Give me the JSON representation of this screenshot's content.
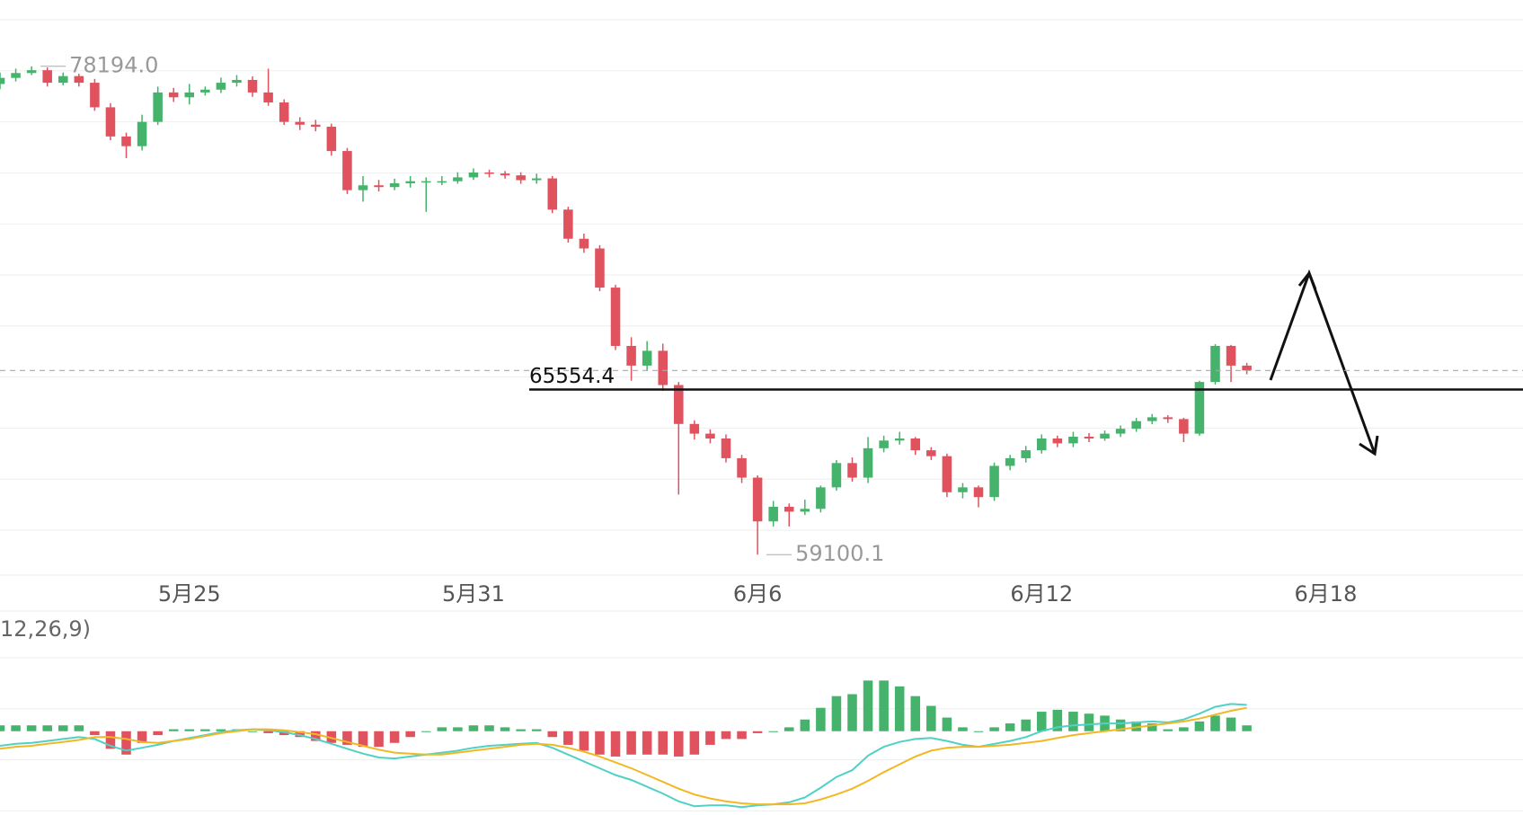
{
  "chart_data": {
    "type": "candlestick",
    "x": [
      0,
      1,
      2,
      3,
      4,
      5,
      6,
      7,
      8,
      9,
      10,
      11,
      12,
      13,
      14,
      15,
      16,
      17,
      18,
      19,
      20,
      21,
      22,
      23,
      24,
      25,
      26,
      27,
      28,
      29,
      30,
      31,
      32,
      33,
      34,
      35,
      36,
      37,
      38,
      39,
      40,
      41,
      42,
      43,
      44,
      45,
      46,
      47,
      48,
      49,
      50,
      51,
      52,
      53,
      54,
      55,
      56,
      57,
      58,
      59,
      60,
      61,
      62,
      63,
      64,
      65,
      66,
      67,
      68,
      69,
      70,
      71,
      72,
      73,
      74,
      75,
      76,
      77,
      78,
      79
    ],
    "open": [
      77500,
      77740,
      77930,
      78040,
      77550,
      77810,
      77550,
      76590,
      75450,
      75070,
      76020,
      77170,
      76980,
      77170,
      77280,
      77550,
      77660,
      77170,
      76780,
      76020,
      75910,
      75830,
      74880,
      73350,
      73540,
      73470,
      73620,
      73700,
      73700,
      73700,
      73850,
      74040,
      74000,
      73930,
      73740,
      73810,
      72590,
      71450,
      71070,
      69540,
      67260,
      66490,
      67070,
      65730,
      64210,
      63830,
      63640,
      62870,
      62110,
      60400,
      60970,
      60780,
      60890,
      61730,
      62680,
      62110,
      63260,
      63560,
      63640,
      63180,
      62950,
      61540,
      61730,
      61350,
      62570,
      62870,
      63180,
      63640,
      63450,
      63710,
      63640,
      63830,
      64020,
      64320,
      64470,
      64400,
      63830,
      65850,
      67260,
      66490
    ],
    "high": [
      77950,
      78100,
      78194.0,
      78150,
      77950,
      77900,
      77700,
      76750,
      75600,
      76300,
      77400,
      77350,
      77500,
      77400,
      77750,
      77850,
      77800,
      78100,
      76900,
      76200,
      76100,
      75950,
      75000,
      73900,
      73750,
      73800,
      73900,
      73850,
      73900,
      74050,
      74200,
      74150,
      74100,
      74050,
      74000,
      73900,
      72700,
      71650,
      71200,
      69650,
      67600,
      67450,
      67350,
      65850,
      64350,
      64000,
      63800,
      63000,
      62200,
      61200,
      61100,
      61250,
      61800,
      62800,
      62900,
      63700,
      63750,
      63900,
      63700,
      63300,
      63050,
      61900,
      61800,
      62700,
      63000,
      63350,
      63800,
      63750,
      63900,
      63850,
      63950,
      64150,
      64450,
      64600,
      64550,
      64450,
      65900,
      67330,
      67300,
      66600
    ],
    "low": [
      77300,
      77600,
      77850,
      77400,
      77450,
      77400,
      76450,
      75300,
      74600,
      74900,
      75900,
      76800,
      76700,
      77050,
      77150,
      77400,
      77000,
      76650,
      75900,
      75700,
      75650,
      74700,
      73200,
      72900,
      73300,
      73350,
      73450,
      72500,
      73550,
      73600,
      73750,
      73850,
      73800,
      73600,
      73600,
      72450,
      71300,
      70900,
      69400,
      67100,
      65900,
      66300,
      65500,
      61450,
      63600,
      63450,
      62700,
      61900,
      59100.1,
      60200,
      60200,
      60650,
      60750,
      61600,
      61950,
      61900,
      63100,
      63400,
      63000,
      62800,
      61350,
      61300,
      60950,
      61200,
      62400,
      62700,
      63050,
      63300,
      63300,
      63500,
      63550,
      63700,
      63900,
      64200,
      64250,
      63500,
      63750,
      65750,
      65850,
      66150
    ],
    "close": [
      77740,
      77930,
      78040,
      77550,
      77810,
      77550,
      76590,
      75450,
      75070,
      76020,
      77170,
      76980,
      77170,
      77280,
      77550,
      77660,
      77170,
      76780,
      76020,
      75910,
      75830,
      74880,
      73350,
      73540,
      73470,
      73620,
      73700,
      73700,
      73700,
      73850,
      74040,
      74000,
      73930,
      73740,
      73810,
      72590,
      71450,
      71070,
      69540,
      67260,
      66490,
      67070,
      65730,
      64210,
      63830,
      63640,
      62870,
      62110,
      60400,
      60970,
      60780,
      60890,
      61730,
      62680,
      62110,
      63260,
      63560,
      63640,
      63180,
      62950,
      61540,
      61730,
      61350,
      62570,
      62870,
      63180,
      63640,
      63450,
      63710,
      63640,
      63830,
      64020,
      64320,
      64470,
      64400,
      63830,
      65850,
      67260,
      66490,
      66300
    ],
    "up_color": "#45b36b",
    "down_color": "#e0525e",
    "xlim": [
      0,
      96.5
    ],
    "ylim": [
      58300,
      80785
    ],
    "xticks": [
      {
        "value": 12,
        "label": "5月25"
      },
      {
        "value": 30,
        "label": "5月31"
      },
      {
        "value": 48,
        "label": "6月6"
      },
      {
        "value": 66,
        "label": "6月12"
      },
      {
        "value": 84,
        "label": "6月18"
      }
    ],
    "max_label": "78194.0",
    "min_label": "59100.1",
    "hline": {
      "value": 65554.4,
      "label": "65554.4"
    },
    "macd": {
      "label": "12,26,9)",
      "ylim": [
        -2150,
        2000
      ],
      "dif_color": "#4fd1c5",
      "dea_color": "#f2b824",
      "dif": [
        -375,
        -325,
        -300,
        -250,
        -200,
        -150,
        -200,
        -375,
        -500,
        -425,
        -350,
        -250,
        -175,
        -100,
        -25,
        25,
        50,
        25,
        -25,
        -100,
        -200,
        -325,
        -450,
        -575,
        -675,
        -700,
        -650,
        -600,
        -550,
        -500,
        -425,
        -375,
        -350,
        -325,
        -300,
        -425,
        -600,
        -775,
        -950,
        -1125,
        -1250,
        -1425,
        -1600,
        -1800,
        -1925,
        -1900,
        -1900,
        -1950,
        -1900,
        -1875,
        -1825,
        -1700,
        -1450,
        -1175,
        -1000,
        -625,
        -400,
        -275,
        -200,
        -175,
        -250,
        -350,
        -400,
        -325,
        -250,
        -150,
        0,
        100,
        150,
        175,
        200,
        200,
        225,
        250,
        225,
        300,
        450,
        625,
        700,
        675
      ],
      "dea": [
        -450,
        -400,
        -375,
        -325,
        -275,
        -225,
        -150,
        -150,
        -200,
        -275,
        -300,
        -250,
        -200,
        -125,
        -50,
        0,
        50,
        50,
        25,
        -25,
        -75,
        -175,
        -275,
        -375,
        -475,
        -550,
        -575,
        -600,
        -600,
        -550,
        -500,
        -450,
        -400,
        -350,
        -325,
        -350,
        -425,
        -525,
        -650,
        -800,
        -950,
        -1125,
        -1300,
        -1475,
        -1625,
        -1725,
        -1800,
        -1850,
        -1875,
        -1875,
        -1875,
        -1850,
        -1750,
        -1625,
        -1475,
        -1275,
        -1050,
        -850,
        -650,
        -500,
        -425,
        -400,
        -400,
        -375,
        -350,
        -300,
        -250,
        -175,
        -100,
        -50,
        0,
        50,
        100,
        150,
        200,
        250,
        325,
        425,
        525,
        600
      ],
      "hist": [
        150,
        150,
        150,
        150,
        150,
        150,
        -100,
        -450,
        -600,
        -300,
        -100,
        50,
        50,
        50,
        50,
        50,
        0,
        -50,
        -100,
        -150,
        -250,
        -300,
        -350,
        -400,
        -400,
        -300,
        -150,
        0,
        100,
        100,
        150,
        150,
        100,
        50,
        50,
        -150,
        -350,
        -500,
        -600,
        -650,
        -600,
        -600,
        -600,
        -650,
        -600,
        -350,
        -200,
        -200,
        -50,
        0,
        100,
        300,
        600,
        900,
        950,
        1300,
        1300,
        1150,
        900,
        650,
        350,
        100,
        0,
        100,
        200,
        300,
        500,
        550,
        500,
        450,
        400,
        300,
        250,
        200,
        50,
        100,
        250,
        400,
        350,
        150
      ]
    }
  }
}
